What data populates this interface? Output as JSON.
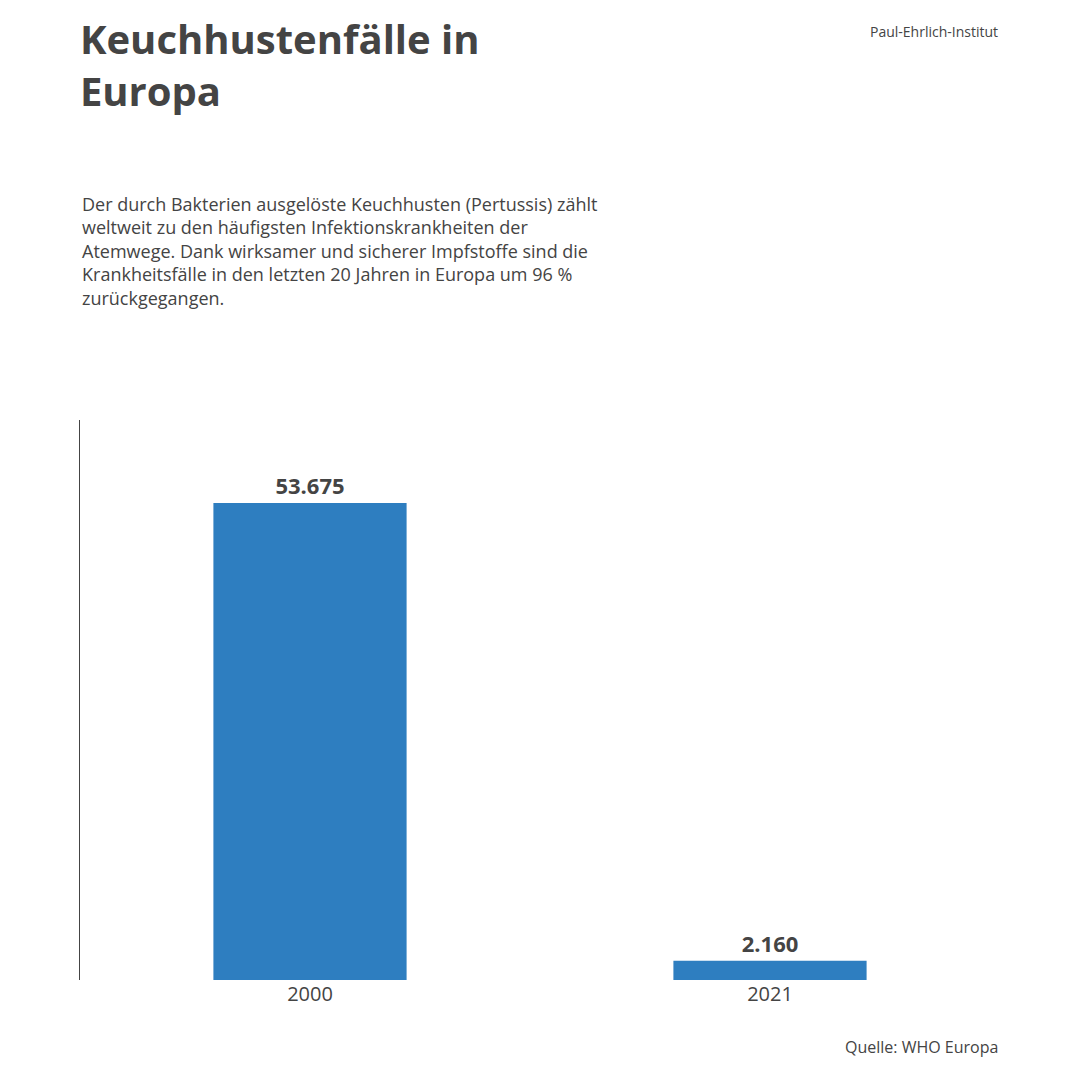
{
  "chart_data": {
    "type": "bar",
    "title": "Keuchhustenfälle in\nEuropa",
    "subtitle": "Der durch Bakterien ausgelöste Keuchhusten (Pertussis) zählt\nweltweit zu den häufigsten Infektionskrankheiten der\nAtemwege. Dank wirksamer und sicherer Impfstoffe sind die\nKrankheitsfälle in den letzten 20 Jahren in Europa um 96 %\nzurückgegangen.",
    "annotations": [
      "Paul-Ehrlich-Institut",
      "Quelle: WHO Europa"
    ],
    "categories": [
      "2000",
      "2021"
    ],
    "values": [
      53675,
      2160
    ],
    "value_labels": [
      "53.675",
      "2.160"
    ],
    "color": "#2e7ec0",
    "ylim": [
      0,
      63000
    ],
    "data_labels": true,
    "tick_labels": "x",
    "grid": false
  }
}
